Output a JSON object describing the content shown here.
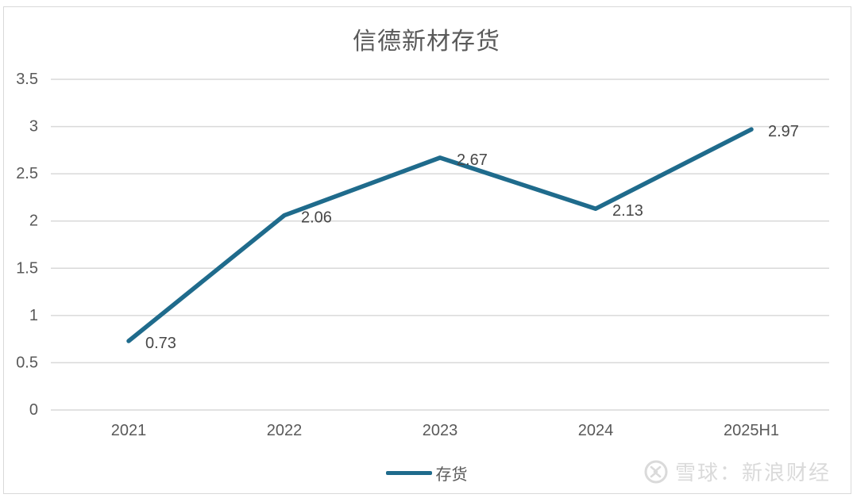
{
  "title": "信德新材存货",
  "colors": {
    "line": "#1f6b8c",
    "grid": "#d9d9d9",
    "frame": "#d9d9d9",
    "axis_text": "#595959",
    "data_label": "#474747",
    "title_text": "#595959",
    "watermark_text": "#dadada"
  },
  "legend": {
    "label": "存货"
  },
  "watermark": {
    "icon": "xueqiu-logo-icon",
    "text": "雪球：新浪财经"
  },
  "chart_data": {
    "type": "line",
    "title": "信德新材存货",
    "categories": [
      "2021",
      "2022",
      "2023",
      "2024",
      "2025H1"
    ],
    "series": [
      {
        "name": "存货",
        "values": [
          0.73,
          2.06,
          2.67,
          2.13,
          2.97
        ]
      }
    ],
    "data_labels": [
      "0.73",
      "2.06",
      "2.67",
      "2.13",
      "2.97"
    ],
    "xlabel": "",
    "ylabel": "",
    "ylim": [
      0,
      3.5
    ],
    "yticks": [
      0,
      0.5,
      1,
      1.5,
      2,
      2.5,
      3,
      3.5
    ],
    "grid": true,
    "legend_position": "bottom"
  }
}
